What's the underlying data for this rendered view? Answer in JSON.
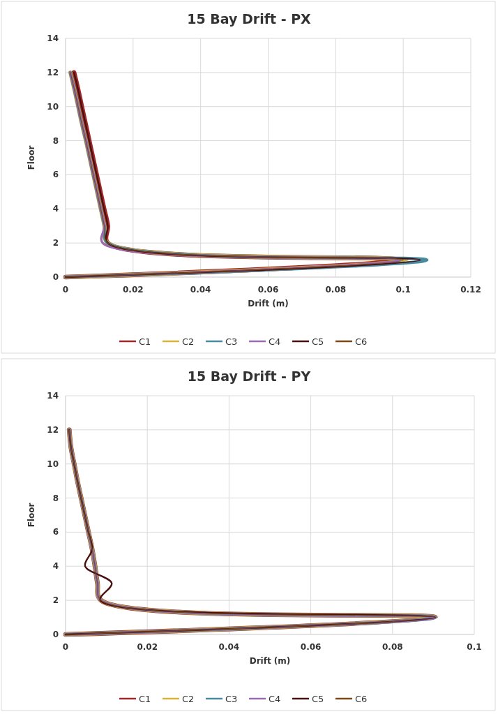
{
  "chart_data": [
    {
      "type": "line",
      "title": "15 Bay Drift - PX",
      "xlabel": "Drift (m)",
      "ylabel": "Floor",
      "xlim": [
        0,
        0.12
      ],
      "xticks": [
        0,
        0.02,
        0.04,
        0.06,
        0.08,
        0.1,
        0.12
      ],
      "ylim": [
        0,
        14
      ],
      "yticks": [
        0,
        2,
        4,
        6,
        8,
        10,
        12,
        14
      ],
      "grid": true,
      "legend": "bottom",
      "line_style": "solid",
      "series": [
        {
          "name": "C1",
          "color": "#a0282a",
          "x": [
            0,
            0.098,
            0.0125,
            0.0125,
            0.0114,
            0.0103,
            0.0092,
            0.0081,
            0.007,
            0.0059,
            0.0048,
            0.0037,
            0.0025
          ],
          "values": [
            0,
            1,
            2,
            3,
            4,
            5,
            6,
            7,
            8,
            9,
            10,
            11,
            12
          ]
        },
        {
          "name": "C2",
          "color": "#d4b43a",
          "x": [
            0,
            0.101,
            0.0125,
            0.0115,
            0.0104,
            0.0093,
            0.0082,
            0.0071,
            0.006,
            0.0048,
            0.0037,
            0.0026,
            0.0014
          ],
          "values": [
            0,
            1,
            2,
            3,
            4,
            5,
            6,
            7,
            8,
            9,
            10,
            11,
            12
          ]
        },
        {
          "name": "C3",
          "color": "#4a8a9e",
          "x": [
            0,
            0.107,
            0.0125,
            0.0115,
            0.0104,
            0.0093,
            0.0082,
            0.0071,
            0.006,
            0.0048,
            0.0037,
            0.0026,
            0.0014
          ],
          "values": [
            0,
            1,
            2,
            3,
            4,
            5,
            6,
            7,
            8,
            9,
            10,
            11,
            12
          ]
        },
        {
          "name": "C4",
          "color": "#9b6bb0",
          "x": [
            0,
            0.099,
            0.011,
            0.0115,
            0.0104,
            0.0093,
            0.0082,
            0.0071,
            0.006,
            0.0048,
            0.0037,
            0.0026,
            0.0014
          ],
          "values": [
            0,
            1,
            2,
            3,
            4,
            5,
            6,
            7,
            8,
            9,
            10,
            11,
            12
          ]
        },
        {
          "name": "C5",
          "color": "#4a1010",
          "x": [
            0,
            0.105,
            0.0125,
            0.0125,
            0.0114,
            0.0103,
            0.0092,
            0.0081,
            0.007,
            0.0059,
            0.0048,
            0.0037,
            0.0025
          ],
          "values": [
            0,
            1,
            2,
            3,
            4,
            5,
            6,
            7,
            8,
            9,
            10,
            11,
            12
          ]
        },
        {
          "name": "C6",
          "color": "#7a4a1a",
          "x": [
            0,
            0.1,
            0.0125,
            0.0115,
            0.0104,
            0.0093,
            0.0082,
            0.0071,
            0.006,
            0.0048,
            0.0037,
            0.0026,
            0.0014
          ],
          "values": [
            0,
            1,
            2,
            3,
            4,
            5,
            6,
            7,
            8,
            9,
            10,
            11,
            12
          ]
        }
      ]
    },
    {
      "type": "line",
      "title": "15 Bay Drift - PY",
      "xlabel": "Drift (m)",
      "ylabel": "Floor",
      "xlim": [
        0,
        0.1
      ],
      "xticks": [
        0,
        0.02,
        0.04,
        0.06,
        0.08,
        0.1
      ],
      "ylim": [
        0,
        14
      ],
      "yticks": [
        0,
        2,
        4,
        6,
        8,
        10,
        12,
        14
      ],
      "grid": true,
      "legend": "bottom",
      "line_style": "solid",
      "series": [
        {
          "name": "C1",
          "color": "#a0282a",
          "x": [
            0,
            0.0905,
            0.0087,
            0.0078,
            0.0072,
            0.0065,
            0.0056,
            0.0047,
            0.0038,
            0.0029,
            0.0021,
            0.0013,
            0.0009
          ],
          "values": [
            0,
            1,
            2,
            3,
            4,
            5,
            6,
            7,
            8,
            9,
            10,
            11,
            12
          ]
        },
        {
          "name": "C2",
          "color": "#d4b43a",
          "x": [
            0,
            0.0905,
            0.0087,
            0.0078,
            0.0072,
            0.0065,
            0.0056,
            0.0047,
            0.0038,
            0.0029,
            0.0021,
            0.0013,
            0.0009
          ],
          "values": [
            0,
            1,
            2,
            3,
            4,
            5,
            6,
            7,
            8,
            9,
            10,
            11,
            12
          ]
        },
        {
          "name": "C3",
          "color": "#4a8a9e",
          "x": [
            0,
            0.0905,
            0.0087,
            0.0078,
            0.0072,
            0.0065,
            0.0056,
            0.0047,
            0.0038,
            0.0029,
            0.0021,
            0.0013,
            0.0009
          ],
          "values": [
            0,
            1,
            2,
            3,
            4,
            5,
            6,
            7,
            8,
            9,
            10,
            11,
            12
          ]
        },
        {
          "name": "C4",
          "color": "#9b6bb0",
          "x": [
            0,
            0.0905,
            0.0087,
            0.0078,
            0.0072,
            0.0065,
            0.0056,
            0.0047,
            0.0038,
            0.0029,
            0.0021,
            0.0013,
            0.0009
          ],
          "values": [
            0,
            1,
            2,
            3,
            4,
            5,
            6,
            7,
            8,
            9,
            10,
            11,
            12
          ]
        },
        {
          "name": "C5",
          "color": "#4a1010",
          "x": [
            0,
            0.0905,
            0.0085,
            0.0113,
            0.0048,
            0.0065,
            0.0056,
            0.0047,
            0.0038,
            0.0029,
            0.0021,
            0.0013,
            0.0009
          ],
          "values": [
            0,
            1,
            2,
            3,
            4,
            5,
            6,
            7,
            8,
            9,
            10,
            11,
            12
          ]
        },
        {
          "name": "C6",
          "color": "#7a4a1a",
          "x": [
            0,
            0.0905,
            0.0087,
            0.0078,
            0.0072,
            0.0065,
            0.0056,
            0.0047,
            0.0038,
            0.0029,
            0.0021,
            0.0013,
            0.0009
          ],
          "values": [
            0,
            1,
            2,
            3,
            4,
            5,
            6,
            7,
            8,
            9,
            10,
            11,
            12
          ]
        }
      ]
    }
  ]
}
